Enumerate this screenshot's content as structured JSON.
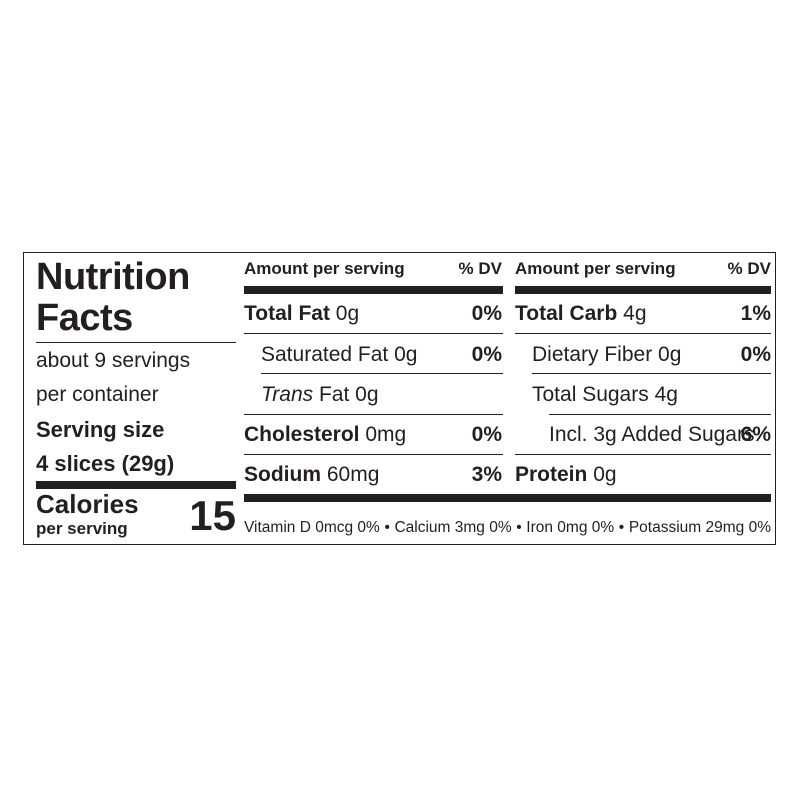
{
  "title": [
    "Nutrition",
    "Facts"
  ],
  "servings_line1": "about 9 servings",
  "servings_line2": "per container",
  "serving_size_label": "Serving size",
  "serving_size_value": "4 slices (29g)",
  "calories_label": "Calories",
  "calories_sub": "per serving",
  "calories_value": "15",
  "left_column": {
    "header_amount": "Amount per serving",
    "header_dv": "% DV",
    "rows": [
      {
        "name": "Total Fat",
        "amount": "0g",
        "dv": "0%"
      },
      {
        "name": "Saturated Fat",
        "amount": "0g",
        "dv": "0%"
      },
      {
        "name_italic": "Trans",
        "name": "Fat",
        "amount": "0g",
        "dv": ""
      },
      {
        "name": "Cholesterol",
        "amount": "0mg",
        "dv": "0%"
      },
      {
        "name": "Sodium",
        "amount": "60mg",
        "dv": "3%"
      }
    ]
  },
  "right_column": {
    "header_amount": "Amount per serving",
    "header_dv": "% DV",
    "rows": [
      {
        "name": "Total Carb",
        "amount": "4g",
        "dv": "1%"
      },
      {
        "name": "Dietary Fiber",
        "amount": "0g",
        "dv": "0%"
      },
      {
        "name": "Total Sugars",
        "amount": "4g",
        "dv": ""
      },
      {
        "name": "Incl. 3g Added Sugars",
        "amount": "",
        "dv": "6%"
      },
      {
        "name": "Protein",
        "amount": "0g",
        "dv": ""
      }
    ]
  },
  "vitamins": [
    "Vitamin D 0mcg 0%",
    "Calcium 3mg 0%",
    "Iron 0mg 0%",
    "Potassium 29mg 0%"
  ],
  "bullet": "•"
}
